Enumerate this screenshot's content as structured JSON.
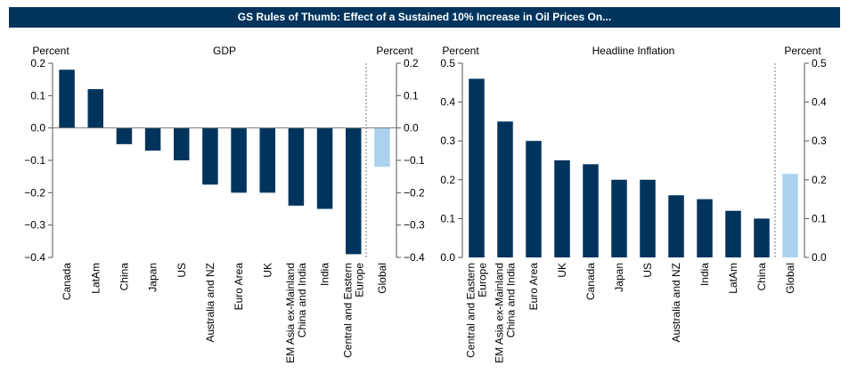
{
  "title": "GS Rules of Thumb: Effect of a Sustained 10% Increase in Oil Prices On...",
  "colors": {
    "bar": "#00345d",
    "highlight": "#abd3f0",
    "banner": "#00345d"
  },
  "chart_data": [
    {
      "type": "bar",
      "title": "GDP",
      "ylabel_left": "Percent",
      "ylabel_right": "Percent",
      "ylim": [
        -0.4,
        0.2
      ],
      "yticks": [
        0.2,
        0.1,
        0.0,
        -0.1,
        -0.2,
        -0.3,
        -0.4
      ],
      "categories": [
        "Canada",
        "LatAm",
        "China",
        "Japan",
        "US",
        "Australia and NZ",
        "Euro Area",
        "UK",
        "EM Asia ex-Mainland China and India",
        "India",
        "Central and Eastern Europe",
        "Global"
      ],
      "values": [
        0.18,
        0.12,
        -0.05,
        -0.07,
        -0.1,
        -0.175,
        -0.2,
        -0.2,
        -0.24,
        -0.25,
        -0.39,
        -0.12
      ],
      "highlight": "Global"
    },
    {
      "type": "bar",
      "title": "Headline Inflation",
      "ylabel_left": "Percent",
      "ylabel_right": "Percent",
      "ylim": [
        0,
        0.5
      ],
      "yticks": [
        0.5,
        0.4,
        0.3,
        0.2,
        0.1,
        0.0
      ],
      "categories": [
        "Central and Eastern Europe",
        "EM Asia ex-Mainland China and India",
        "Euro Area",
        "UK",
        "Canada",
        "Japan",
        "US",
        "Australia and NZ",
        "India",
        "LatAm",
        "China",
        "Global"
      ],
      "values": [
        0.46,
        0.35,
        0.3,
        0.25,
        0.24,
        0.2,
        0.2,
        0.16,
        0.15,
        0.12,
        0.1,
        0.215
      ],
      "highlight": "Global"
    }
  ]
}
